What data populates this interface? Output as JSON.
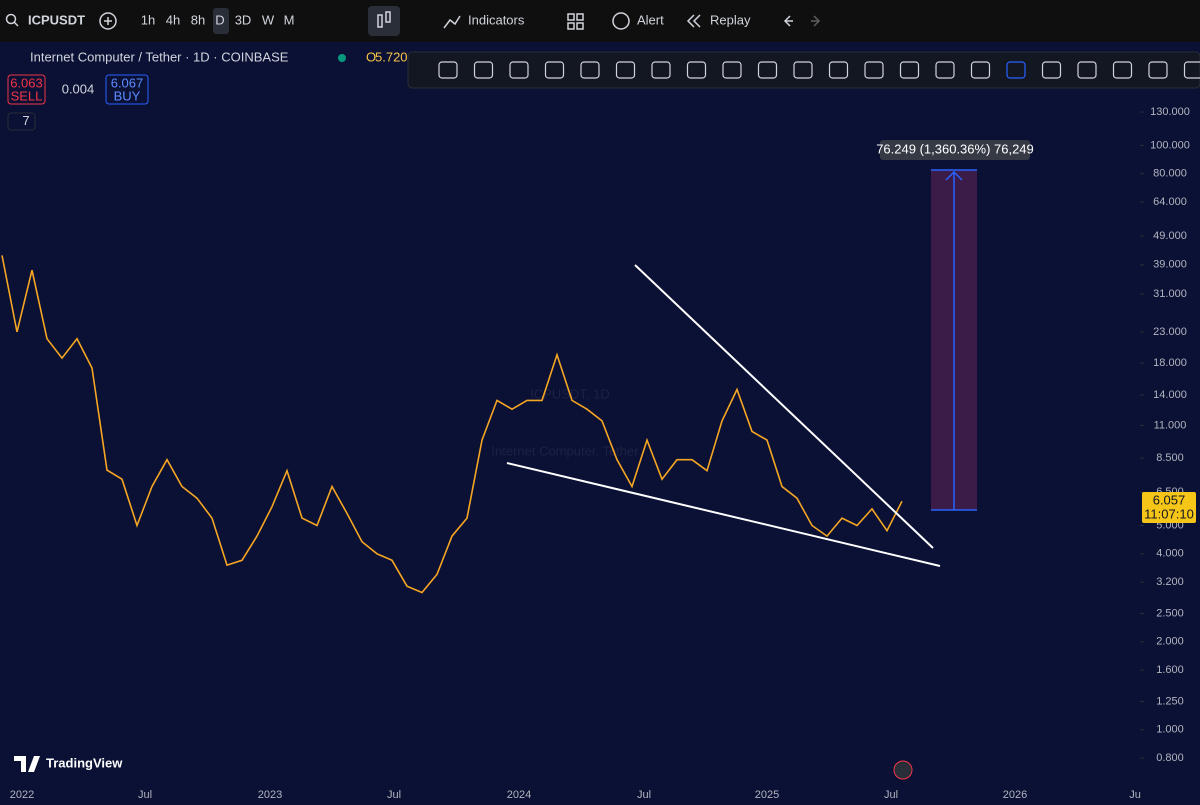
{
  "toolbar": {
    "symbol": "ICPUSDT",
    "intervals": [
      "1h",
      "4h",
      "8h",
      "D",
      "3D",
      "W",
      "M"
    ],
    "indicators": "Indicators",
    "alert": "Alert",
    "replay": "Replay"
  },
  "legend": {
    "title": "Internet Computer / Tether · 1D · COINBASE",
    "open_label": "O",
    "open_value": "5.720",
    "sell_price": "6.063",
    "sell": "SELL",
    "spread": "0.004",
    "buy_price": "6.067",
    "buy": "BUY",
    "indicator_count": "7"
  },
  "watermark": {
    "symbol": "ICPUSDT, 1D",
    "name": "Internet Computer, Tether"
  },
  "measure_label": "76.249 (1,360.36%) 76,249",
  "price_tag": {
    "price": "6.057",
    "countdown": "11:07:10"
  },
  "logo": "TradingView",
  "chart_data": {
    "type": "line",
    "log_scale": true,
    "color": "#f5a623",
    "x_labels": [
      "2022",
      "Jul",
      "2023",
      "Jul",
      "2024",
      "Jul",
      "2025",
      "Jul",
      "2026",
      "Ju"
    ],
    "values": [
      42,
      23,
      37.4,
      21.8,
      18.7,
      21.8,
      17.3,
      7.74,
      7.2,
      5.0,
      6.8,
      8.4,
      6.8,
      6.2,
      5.3,
      3.66,
      3.8,
      4.6,
      5.8,
      7.7,
      5.3,
      5.0,
      6.8,
      5.5,
      4.4,
      4.0,
      3.8,
      3.1,
      2.95,
      3.4,
      4.6,
      5.3,
      9.8,
      13.4,
      12.5,
      13.4,
      13.4,
      19.2,
      13.4,
      12.5,
      11.4,
      8.4,
      6.8,
      9.8,
      7.2,
      8.4,
      8.4,
      7.7,
      11.4,
      14.6,
      10.5,
      9.8,
      6.8,
      6.2,
      5.0,
      4.6,
      5.3,
      5.0,
      5.7,
      4.8,
      6.057
    ],
    "ylim": [
      0.647,
      148.7
    ],
    "yticks": [
      {
        "value": 130,
        "label": "130.000"
      },
      {
        "value": 100,
        "label": "100.000"
      },
      {
        "value": 80,
        "label": "80.000"
      },
      {
        "value": 64,
        "label": "64.000"
      },
      {
        "value": 49,
        "label": "49.000"
      },
      {
        "value": 39,
        "label": "39.000"
      },
      {
        "value": 31,
        "label": "31.000"
      },
      {
        "value": 23,
        "label": "23.000"
      },
      {
        "value": 18,
        "label": "18.000"
      },
      {
        "value": 14,
        "label": "14.000"
      },
      {
        "value": 11,
        "label": "11.000"
      },
      {
        "value": 8.5,
        "label": "8.500"
      },
      {
        "value": 6.5,
        "label": "6.500"
      },
      {
        "value": 5,
        "label": "5.000"
      },
      {
        "value": 4,
        "label": "4.000"
      },
      {
        "value": 3.2,
        "label": "3.200"
      },
      {
        "value": 2.5,
        "label": "2.500"
      },
      {
        "value": 2,
        "label": "2.000"
      },
      {
        "value": 1.6,
        "label": "1.600"
      },
      {
        "value": 1.25,
        "label": "1.250"
      },
      {
        "value": 1,
        "label": "1.000"
      },
      {
        "value": 0.8,
        "label": "0.800"
      }
    ]
  }
}
